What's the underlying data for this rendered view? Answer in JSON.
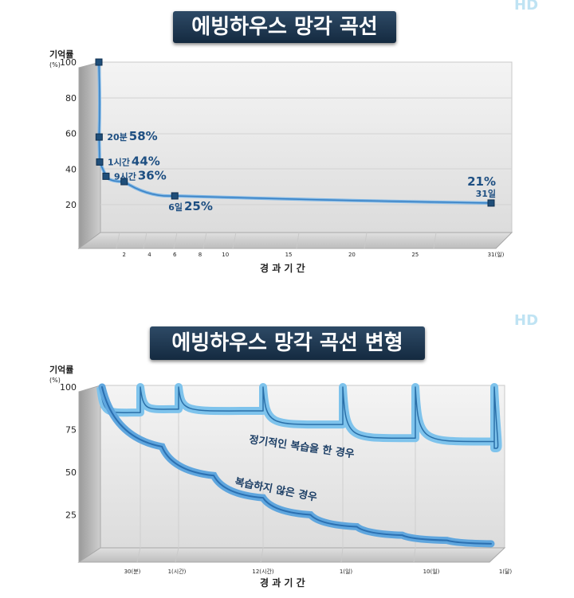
{
  "charts": [
    {
      "title": "에빙하우스 망각 곡선",
      "badge": "HD",
      "ylabel": "기억률",
      "yunit": "(%)",
      "xlabel": "경 과 기 간",
      "chart_type": "line"
    },
    {
      "title": "에빙하우스 망각 곡선 변형",
      "badge": "HD",
      "ylabel": "기억률",
      "yunit": "(%)",
      "xlabel": "경 과 기 간",
      "chart_type": "line"
    }
  ],
  "chart_data": [
    {
      "type": "line",
      "title": "에빙하우스 망각 곡선",
      "xlabel": "경 과 기 간",
      "ylabel": "기억률 (%)",
      "ylim": [
        0,
        100
      ],
      "grid": true,
      "y_ticks": [
        "100",
        "80",
        "60",
        "40",
        "20"
      ],
      "x_ticks": [
        "2",
        "4",
        "6",
        "8",
        "10",
        "15",
        "20",
        "25",
        "31(일)"
      ],
      "x_tick_values": [
        2,
        4,
        6,
        8,
        10,
        15,
        20,
        25,
        31
      ],
      "points": [
        {
          "x": 0,
          "y": 100,
          "label": ""
        },
        {
          "x": 0.014,
          "y": 58,
          "small": "20분",
          "big": "58%"
        },
        {
          "x": 0.042,
          "y": 44,
          "small": "1시간",
          "big": "44%"
        },
        {
          "x": 0.375,
          "y": 36,
          "small": "9시간",
          "big": "36%"
        },
        {
          "x": 2,
          "y": 33,
          "label": ""
        },
        {
          "x": 6,
          "y": 25,
          "small": "6일",
          "big": "25%"
        },
        {
          "x": 31,
          "y": 21,
          "small": "31일",
          "big": "21%"
        }
      ]
    },
    {
      "type": "line",
      "title": "에빙하우스 망각 곡선 변형",
      "xlabel": "경 과 기 간",
      "ylabel": "기억률 (%)",
      "ylim": [
        0,
        100
      ],
      "grid": true,
      "y_ticks": [
        "100",
        "75",
        "50",
        "25"
      ],
      "x_ticks": [
        "30(분)",
        "1(시간)",
        "12(시간)",
        "1(일)",
        "10(일)",
        "1(달)"
      ],
      "series": [
        {
          "name": "정기적인 복습을 한 경우",
          "values": [
            100,
            85,
            100,
            87,
            100,
            86,
            100,
            78,
            100,
            70,
            100,
            68,
            100,
            64
          ]
        },
        {
          "name": "복습하지 않은 경우",
          "values": [
            100,
            65,
            48,
            35,
            25,
            18,
            13,
            10,
            8
          ]
        }
      ]
    }
  ]
}
